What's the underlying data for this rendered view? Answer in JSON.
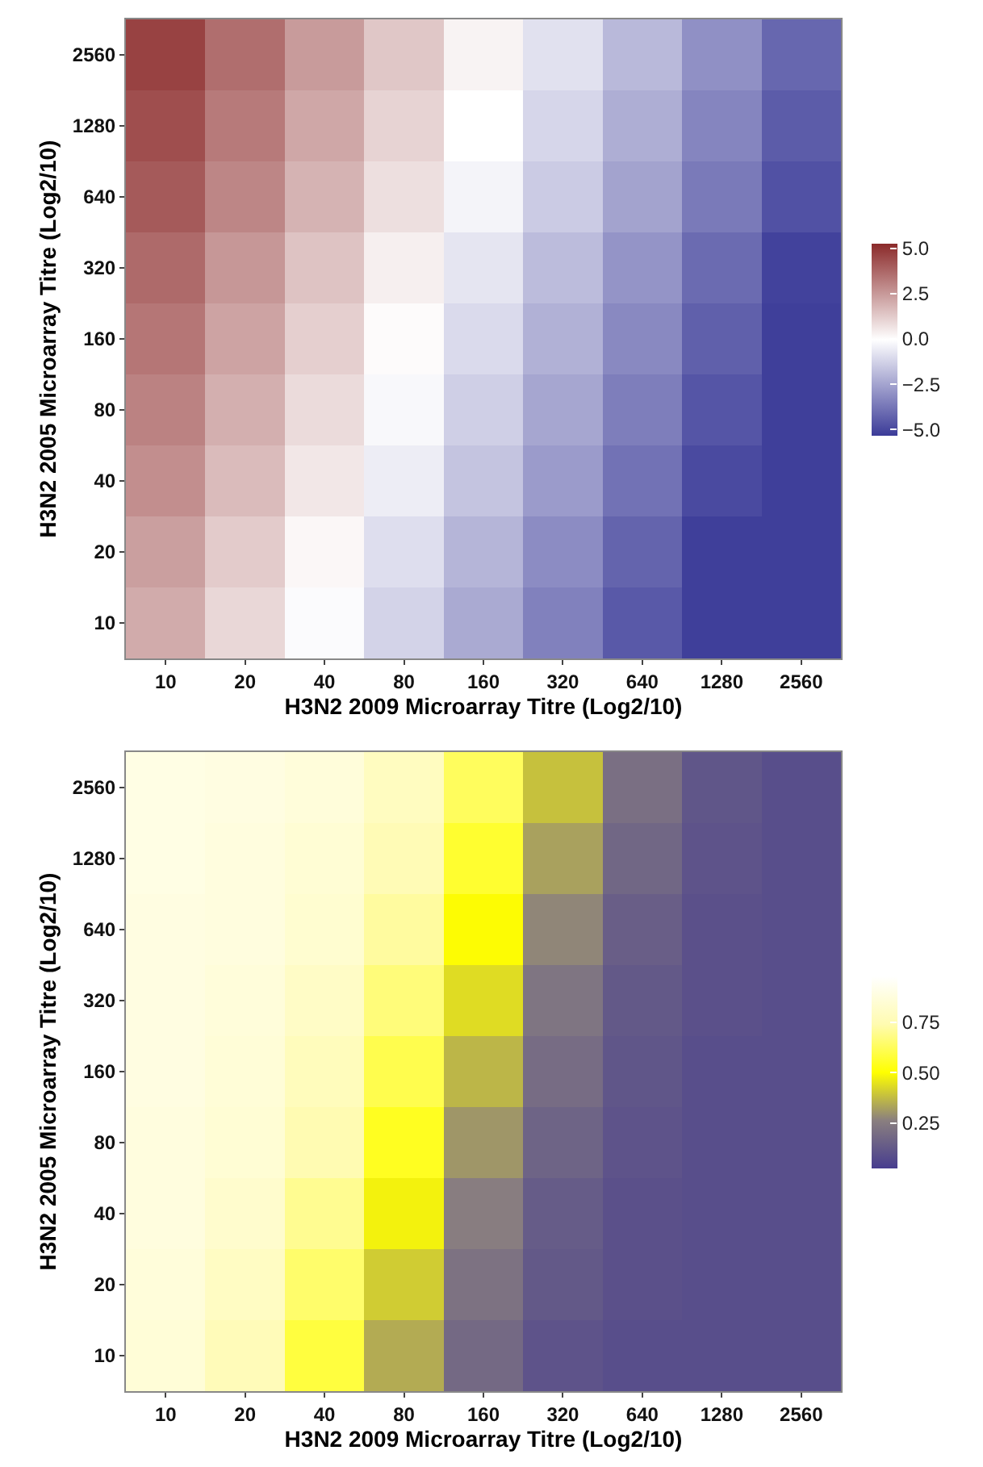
{
  "chart_data": [
    {
      "type": "heatmap",
      "xlabel": "H3N2 2009 Microarray Titre (Log2/10)",
      "ylabel": "H3N2 2005 Microarray Titre (Log2/10)",
      "categories": [
        "10",
        "20",
        "40",
        "80",
        "160",
        "320",
        "640",
        "1280",
        "2560"
      ],
      "y_categories": [
        "2560",
        "1280",
        "640",
        "320",
        "160",
        "80",
        "40",
        "20",
        "10"
      ],
      "cells": [
        [
          4.7,
          3.6,
          2.5,
          1.4,
          0.3,
          -0.8,
          -1.9,
          -3.0,
          -4.1
        ],
        [
          4.4,
          3.3,
          2.2,
          1.1,
          0.0,
          -1.1,
          -2.2,
          -3.3,
          -4.4
        ],
        [
          4.1,
          3.0,
          1.9,
          0.8,
          -0.3,
          -1.4,
          -2.5,
          -3.6,
          -4.7
        ],
        [
          3.7,
          2.6,
          1.5,
          0.4,
          -0.7,
          -1.8,
          -2.9,
          -4.0,
          -5.1
        ],
        [
          3.4,
          2.3,
          1.2,
          0.1,
          -1.0,
          -2.1,
          -3.2,
          -4.3,
          -5.2
        ],
        [
          3.1,
          2.0,
          0.9,
          -0.2,
          -1.3,
          -2.4,
          -3.5,
          -4.6,
          -5.2
        ],
        [
          2.8,
          1.7,
          0.6,
          -0.5,
          -1.6,
          -2.7,
          -3.8,
          -4.9,
          -5.2
        ],
        [
          2.4,
          1.3,
          0.2,
          -0.9,
          -2.0,
          -3.1,
          -4.2,
          -5.2,
          -5.2
        ],
        [
          2.1,
          1.0,
          -0.1,
          -1.2,
          -2.3,
          -3.4,
          -4.5,
          -5.2,
          -5.2
        ]
      ],
      "clim": [
        -5.3,
        5.3
      ],
      "cticks": [
        {
          "value": -5,
          "label": "−5.0"
        },
        {
          "value": -2.5,
          "label": "−2.5"
        },
        {
          "value": 0,
          "label": "0.0"
        },
        {
          "value": 2.5,
          "label": "2.5"
        },
        {
          "value": 5,
          "label": "5.0"
        }
      ]
    },
    {
      "type": "heatmap",
      "xlabel": "H3N2 2009 Microarray Titre (Log2/10)",
      "ylabel": "H3N2 2005 Microarray Titre (Log2/10)",
      "categories": [
        "10",
        "20",
        "40",
        "80",
        "160",
        "320",
        "640",
        "1280",
        "2560"
      ],
      "y_categories": [
        "2560",
        "1280",
        "640",
        "320",
        "160",
        "80",
        "40",
        "20",
        "10"
      ],
      "cells": [
        [
          0.9,
          0.89,
          0.87,
          0.79,
          0.63,
          0.39,
          0.21,
          0.12,
          0.09
        ],
        [
          0.9,
          0.88,
          0.85,
          0.76,
          0.57,
          0.33,
          0.18,
          0.11,
          0.09
        ],
        [
          0.89,
          0.88,
          0.84,
          0.72,
          0.5,
          0.28,
          0.15,
          0.1,
          0.09
        ],
        [
          0.89,
          0.87,
          0.81,
          0.67,
          0.44,
          0.23,
          0.13,
          0.1,
          0.09
        ],
        [
          0.89,
          0.86,
          0.78,
          0.61,
          0.37,
          0.2,
          0.12,
          0.09,
          0.09
        ],
        [
          0.88,
          0.85,
          0.75,
          0.55,
          0.31,
          0.17,
          0.11,
          0.09,
          0.09
        ],
        [
          0.88,
          0.83,
          0.7,
          0.48,
          0.26,
          0.14,
          0.1,
          0.09,
          0.09
        ],
        [
          0.87,
          0.8,
          0.65,
          0.41,
          0.22,
          0.13,
          0.1,
          0.09,
          0.09
        ],
        [
          0.86,
          0.77,
          0.59,
          0.35,
          0.19,
          0.11,
          0.09,
          0.09,
          0.09
        ]
      ],
      "clim": [
        0.03,
        0.98
      ],
      "cticks": [
        {
          "value": 0.25,
          "label": "0.25"
        },
        {
          "value": 0.5,
          "label": "0.50"
        },
        {
          "value": 0.75,
          "label": "0.75"
        }
      ]
    }
  ]
}
